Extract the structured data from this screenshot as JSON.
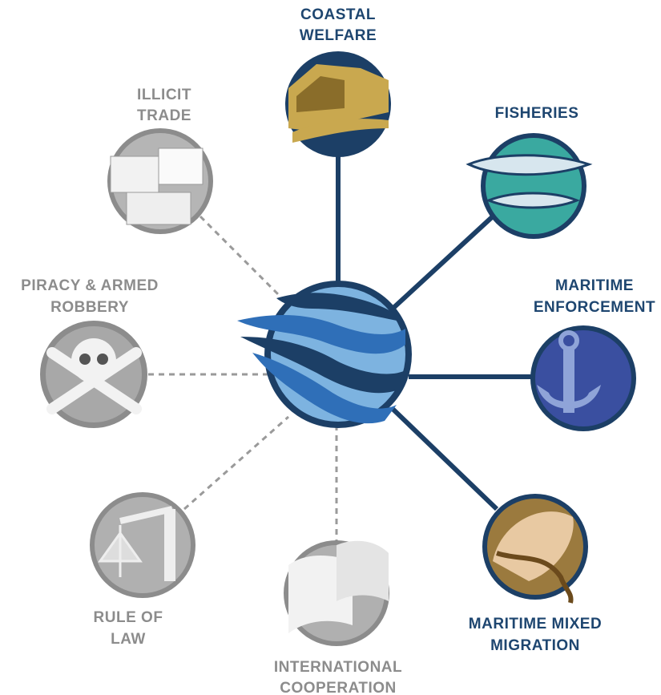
{
  "nodes": [
    {
      "label": [
        "COASTAL",
        "WELFARE"
      ]
    },
    {
      "label": [
        "ILLICIT",
        "TRADE"
      ]
    },
    {
      "label": [
        "FISHERIES"
      ]
    },
    {
      "label": [
        "PIRACY & ARMED",
        "ROBBERY"
      ]
    },
    {
      "label": [
        "MARITIME",
        "ENFORCEMENT"
      ]
    },
    {
      "label": [
        "RULE OF",
        "LAW"
      ]
    },
    {
      "label": [
        "INTERNATIONAL",
        "COOPERATION"
      ]
    },
    {
      "label": [
        "MARITIME MIXED",
        "MIGRATION"
      ]
    }
  ]
}
